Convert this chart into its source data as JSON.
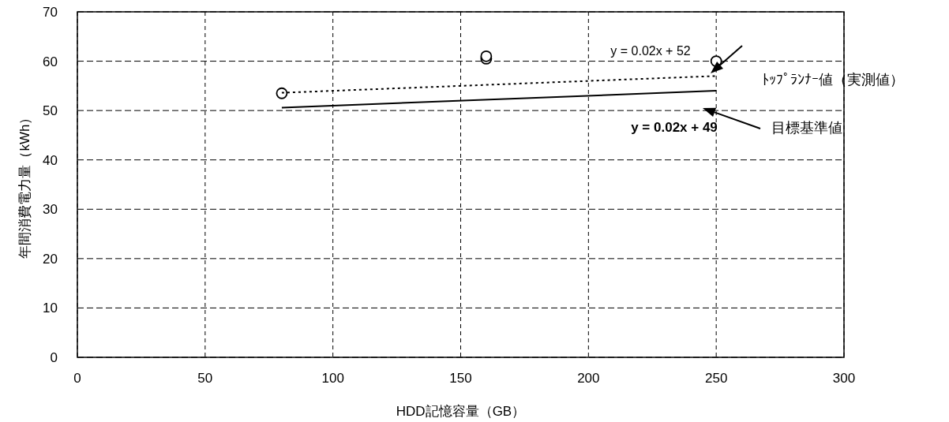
{
  "chart_data": {
    "type": "scatter",
    "xlabel": "HDD記憶容量（GB）",
    "ylabel": "年間消費電力量（kWh）",
    "xlim": [
      0,
      300
    ],
    "xticks": [
      0,
      50,
      100,
      150,
      200,
      250,
      300
    ],
    "ylim": [
      0,
      70
    ],
    "yticks": [
      0,
      10,
      20,
      30,
      40,
      50,
      60,
      70
    ],
    "grid": true,
    "series": [
      {
        "color": "#000000",
        "marker": "circle",
        "x": [
          80,
          160,
          160,
          250
        ],
        "values": [
          53.5,
          60.5,
          61,
          60
        ]
      },
      {
        "type": "line",
        "color": "#000000",
        "line_style": "dotted",
        "marker": "none",
        "x": [
          80,
          250
        ],
        "values": [
          53.6,
          57
        ]
      },
      {
        "type": "line",
        "color": "#000000",
        "line_style": "solid",
        "marker": "none",
        "x": [
          80,
          250
        ],
        "values": [
          50.6,
          54
        ]
      }
    ],
    "annotations": [
      "y = 0.02x + 52",
      "y = 0.02x + 49",
      "ﾄｯﾌﾟﾗﾝﾅｰ値（実測値）",
      "目標基準値"
    ]
  }
}
